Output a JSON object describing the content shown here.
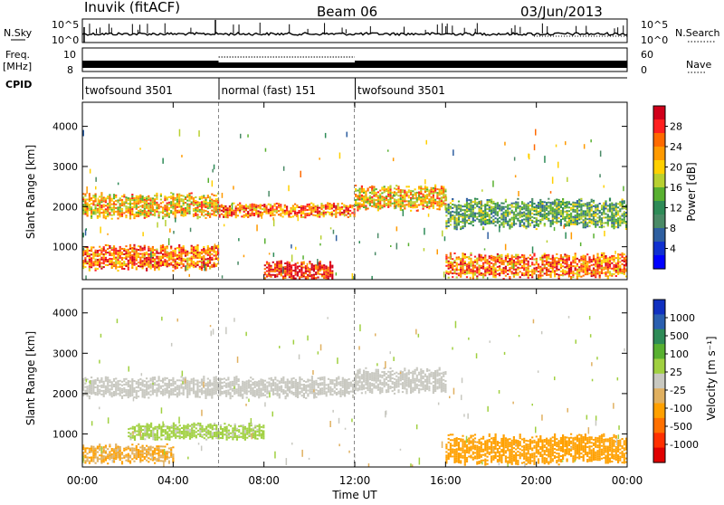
{
  "header": {
    "station": "Inuvik (fitACF)",
    "beam": "Beam 06",
    "date": "03/Jun/2013"
  },
  "strip": {
    "nsky_label": "N.Sky",
    "nsky_ticks": [
      "10^5",
      "10^0"
    ],
    "nsky_right_ticks": [
      "10^5",
      "10^0"
    ],
    "nsearch_label": "N.Search",
    "freq_label_1": "Freq.",
    "freq_label_2": "[MHz]",
    "freq_ticks": [
      "10",
      "8"
    ],
    "nave_ticks": [
      "60",
      "0"
    ],
    "nave_label": "Nave",
    "cpid_label": "CPID",
    "cpid_segments": [
      {
        "label": "twofsound 3501",
        "start_hour": 0,
        "end_hour": 6
      },
      {
        "label": "normal (fast) 151",
        "start_hour": 6,
        "end_hour": 12
      },
      {
        "label": "twofsound 3501",
        "start_hour": 12,
        "end_hour": 24
      }
    ]
  },
  "axes": {
    "ylabel": "Slant Range [km]",
    "xlabel": "Time UT",
    "yticks": [
      "1000",
      "2000",
      "3000",
      "4000"
    ],
    "xticks": [
      "00:00",
      "04:00",
      "08:00",
      "12:00",
      "16:00",
      "20:00",
      "00:00"
    ]
  },
  "power_colorbar": {
    "title": "Power [dB]",
    "ticks": [
      "28",
      "24",
      "20",
      "16",
      "12",
      "8",
      "4"
    ],
    "colors": [
      "#d0001a",
      "#ff2020",
      "#ff6a00",
      "#ff9a00",
      "#ffd000",
      "#b8d030",
      "#58b030",
      "#2e8b57",
      "#4a8a66",
      "#2e5fa0",
      "#1030d0",
      "#0000ff"
    ]
  },
  "velocity_colorbar": {
    "title": "Velocity [m s⁻¹]",
    "ticks": [
      "1000",
      "500",
      "100",
      "25",
      "-25",
      "-100",
      "-500",
      "-1000"
    ],
    "colors": [
      "#1030c0",
      "#2a5fb0",
      "#2e8b57",
      "#58b030",
      "#a0d040",
      "#c8c8c0",
      "#e0b060",
      "#ffa000",
      "#ff7000",
      "#ff3000",
      "#e00000"
    ]
  },
  "chart_data": [
    {
      "type": "heatmap",
      "title": "Power [dB]",
      "xlabel": "Time UT",
      "ylabel": "Slant Range [km]",
      "xlim": [
        0,
        24
      ],
      "ylim": [
        180,
        4600
      ],
      "zlim": [
        0,
        30
      ],
      "features": [
        {
          "t_start": 0,
          "t_end": 6,
          "range_center": 2000,
          "range_width": 500,
          "power": 20
        },
        {
          "t_start": 0,
          "t_end": 6,
          "range_center": 700,
          "range_width": 500,
          "power": 24
        },
        {
          "t_start": 6,
          "t_end": 12,
          "range_center": 1900,
          "range_width": 300,
          "power": 24
        },
        {
          "t_start": 8,
          "t_end": 11,
          "range_center": 400,
          "range_width": 400,
          "power": 28
        },
        {
          "t_start": 12,
          "t_end": 16,
          "range_center": 2200,
          "range_width": 500,
          "power": 20
        },
        {
          "t_start": 16,
          "t_end": 24,
          "range_center": 1800,
          "range_width": 600,
          "power": 12
        },
        {
          "t_start": 16,
          "t_end": 24,
          "range_center": 500,
          "range_width": 500,
          "power": 24
        }
      ]
    },
    {
      "type": "heatmap",
      "title": "Velocity [m s⁻¹]",
      "xlabel": "Time UT",
      "ylabel": "Slant Range [km]",
      "xlim": [
        0,
        24
      ],
      "ylim": [
        180,
        4600
      ],
      "zlim": [
        -1000,
        1000
      ],
      "features": [
        {
          "t_start": 0,
          "t_end": 12,
          "range_center": 2150,
          "range_width": 450,
          "velocity": 0
        },
        {
          "t_start": 12,
          "t_end": 16,
          "range_center": 2300,
          "range_width": 500,
          "velocity": 0
        },
        {
          "t_start": 2,
          "t_end": 8,
          "range_center": 1050,
          "range_width": 350,
          "velocity": 150
        },
        {
          "t_start": 0,
          "t_end": 4,
          "range_center": 500,
          "range_width": 400,
          "velocity": -300
        },
        {
          "t_start": 16,
          "t_end": 24,
          "range_center": 600,
          "range_width": 600,
          "velocity": -400
        }
      ]
    }
  ]
}
